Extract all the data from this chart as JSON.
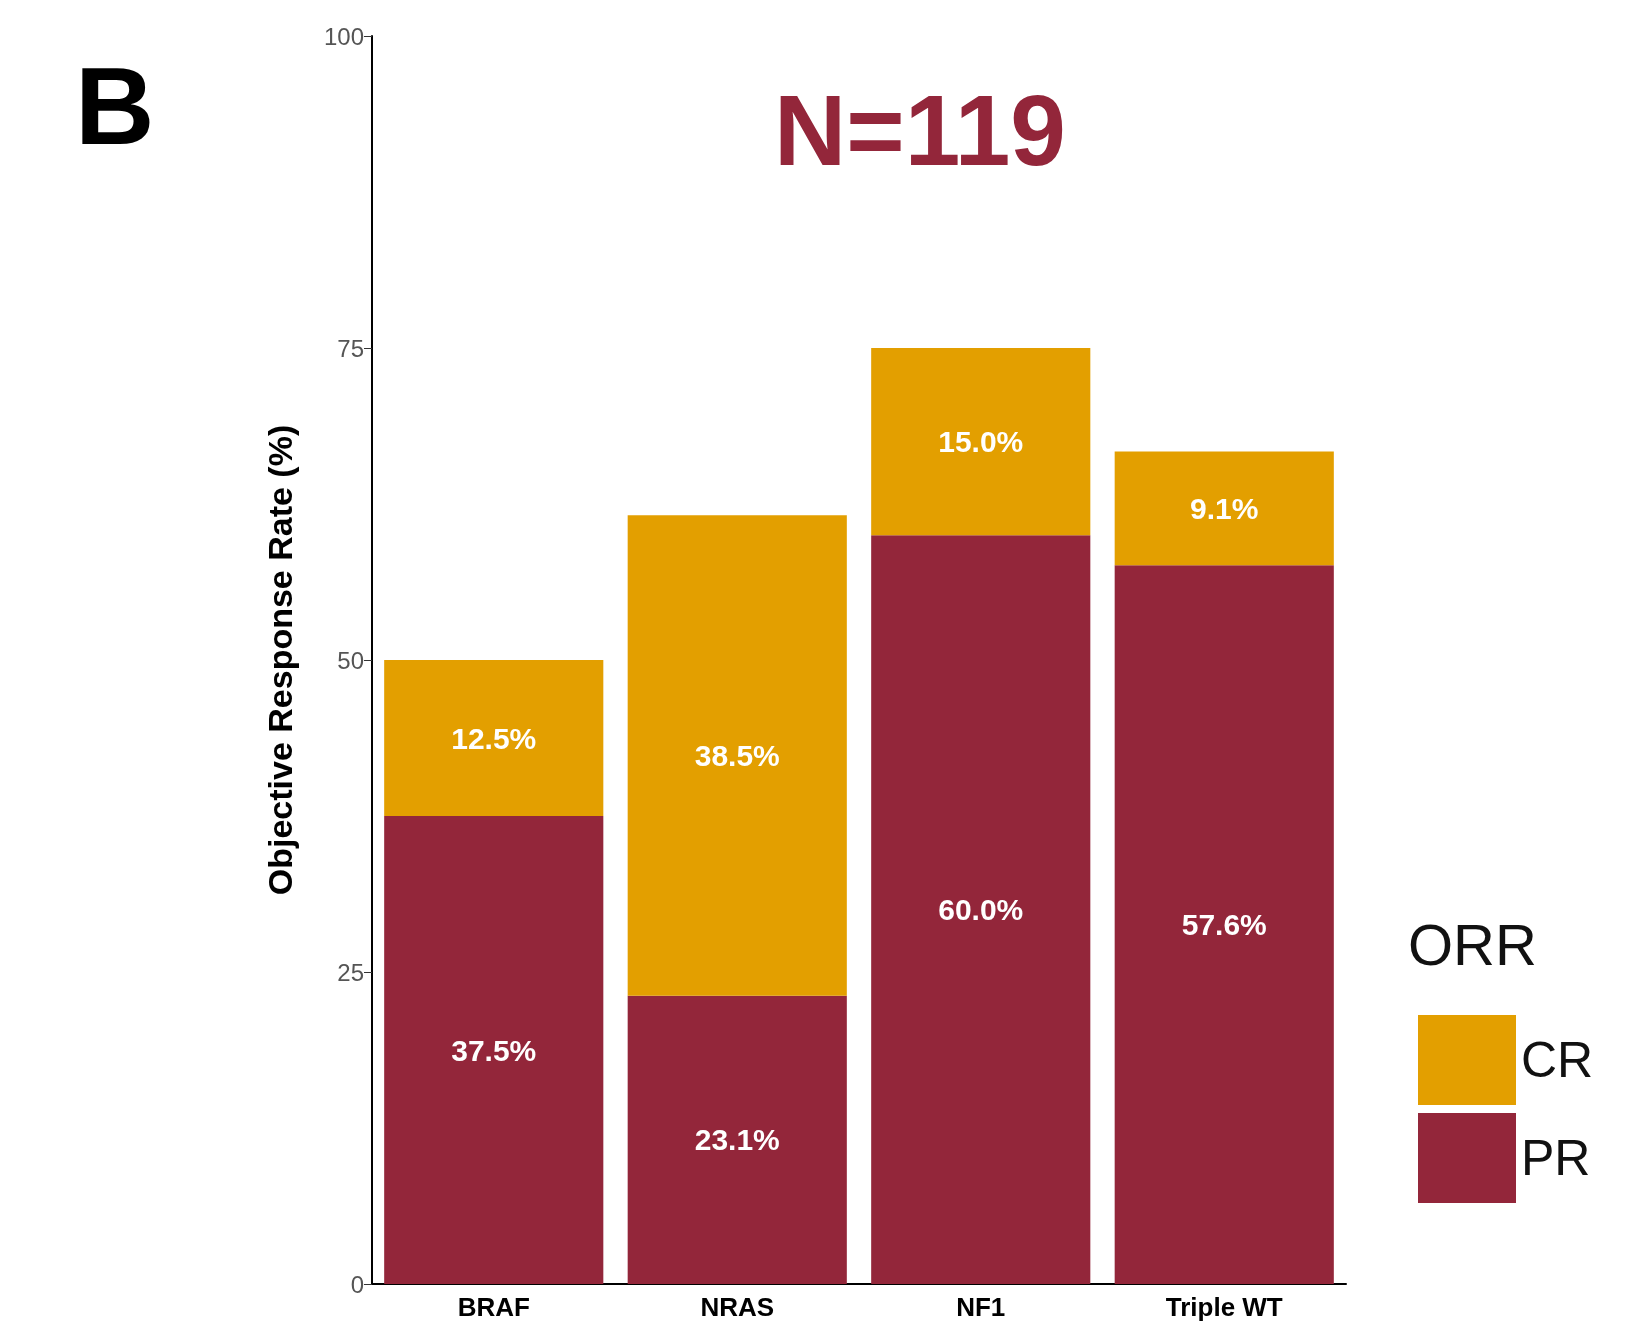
{
  "chart_data": {
    "type": "bar",
    "title": "N=119",
    "ylabel": "Objective Response Rate (%)",
    "legend_title": "ORR",
    "annotations": [
      "B"
    ],
    "categories": [
      "BRAF",
      "NRAS",
      "NF1",
      "Triple WT"
    ],
    "stacked": true,
    "series": [
      {
        "name": "PR",
        "color": "#93263a",
        "values": [
          37.5,
          23.1,
          60.0,
          57.6
        ],
        "value_labels": [
          "37.5%",
          "23.1%",
          "60.0%",
          "57.6%"
        ]
      },
      {
        "name": "CR",
        "color": "#e39f00",
        "values": [
          12.5,
          38.5,
          15.0,
          9.1
        ],
        "value_labels": [
          "12.5%",
          "38.5%",
          "15.0%",
          "9.1%"
        ]
      }
    ],
    "ylim": [
      0,
      100
    ],
    "yticks": [
      0,
      25,
      50,
      75,
      100
    ],
    "grid": false,
    "legend": "right"
  }
}
